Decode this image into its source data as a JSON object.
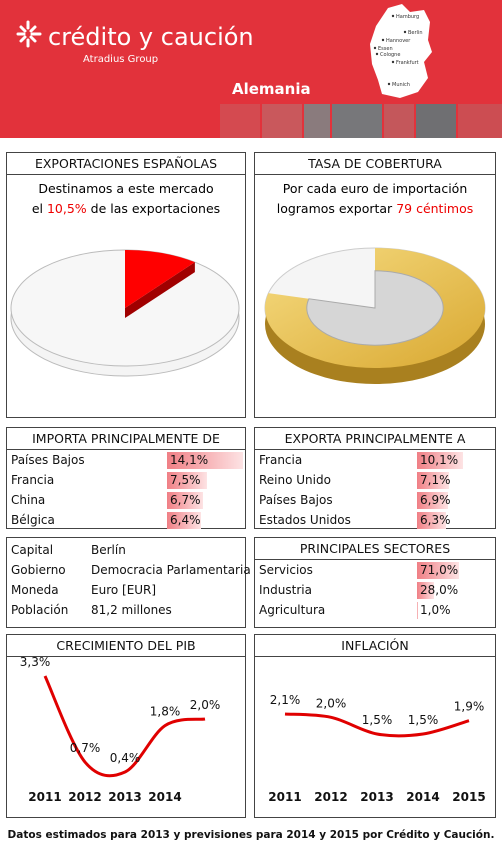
{
  "header": {
    "brand": "crédito y caución",
    "group": "Atradius Group",
    "country": "Alemania",
    "cities": [
      "Hamburg",
      "Berlin",
      "Hannover",
      "Essen",
      "Cologne",
      "Frankfurt",
      "Munich"
    ]
  },
  "chart_data": [
    {
      "type": "pie",
      "title": "EXPORTACIONES ESPAÑOLAS",
      "text_line1": "Destinamos a este mercado",
      "text_pre": "el",
      "text_post": "de las exportaciones",
      "values": [
        10.5
      ],
      "value_labels": [
        "10,5%"
      ],
      "color": "#ff0000"
    },
    {
      "type": "coin",
      "title": "TASA DE COBERTURA",
      "text_line1": "Por cada euro de importación",
      "text_pre": "logramos exportar",
      "values": [
        79
      ],
      "value_labels": [
        "79 céntimos"
      ],
      "color": "#d9a831"
    },
    {
      "type": "line",
      "title": "CRECIMIENTO DEL PIB",
      "categories": [
        "2011",
        "2012",
        "2013",
        "2014",
        null
      ],
      "values": [
        3.3,
        0.7,
        0.4,
        1.8,
        2.0
      ],
      "value_labels": [
        "3,3%",
        "0,7%",
        "0,4%",
        "1,8%",
        "2,0%"
      ],
      "color": "#e00000"
    },
    {
      "type": "line",
      "title": "INFLACIÓN",
      "categories": [
        "2011",
        "2012",
        "2013",
        "2014",
        "2015"
      ],
      "values": [
        2.1,
        2.0,
        1.5,
        1.5,
        1.9
      ],
      "value_labels": [
        "2,1%",
        "2,0%",
        "1,5%",
        "1,5%",
        "1,9%"
      ],
      "color": "#e00000"
    }
  ],
  "imports": {
    "title": "IMPORTA PRINCIPALMENTE DE",
    "rows": [
      {
        "name": "Países Bajos",
        "value": 14.1,
        "label": "14,1%"
      },
      {
        "name": "Francia",
        "value": 7.5,
        "label": "7,5%"
      },
      {
        "name": "China",
        "value": 6.7,
        "label": "6,7%"
      },
      {
        "name": "Bélgica",
        "value": 6.4,
        "label": "6,4%"
      }
    ]
  },
  "exports": {
    "title": "EXPORTA PRINCIPALMENTE A",
    "rows": [
      {
        "name": "Francia",
        "value": 10.1,
        "label": "10,1%"
      },
      {
        "name": "Reino Unido",
        "value": 7.1,
        "label": "7,1%"
      },
      {
        "name": "Países Bajos",
        "value": 6.9,
        "label": "6,9%"
      },
      {
        "name": "Estados Unidos",
        "value": 6.3,
        "label": "6,3%"
      }
    ]
  },
  "info": {
    "rows": [
      [
        "Capital",
        "Berlín"
      ],
      [
        "Gobierno",
        "Democracia Parlamentaria"
      ],
      [
        "Moneda",
        "Euro [EUR]"
      ],
      [
        "Población",
        "81,2 millones"
      ]
    ]
  },
  "sectors": {
    "title": "PRINCIPALES SECTORES",
    "rows": [
      {
        "name": "Servicios",
        "value": 71.0,
        "label": "71,0%"
      },
      {
        "name": "Industria",
        "value": 28.0,
        "label": "28,0%"
      },
      {
        "name": "Agricultura",
        "value": 1.0,
        "label": "1,0%"
      }
    ]
  },
  "footer": "Datos estimados para 2013 y previsiones para 2014 y 2015 por Crédito y Caución."
}
